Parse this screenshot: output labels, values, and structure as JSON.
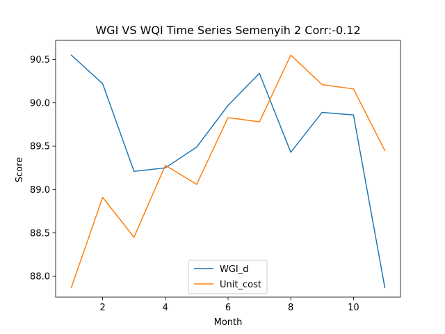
{
  "chart_data": {
    "type": "line",
    "title": "WGI VS WQI Time Series Semenyih 2 Corr:-0.12",
    "xlabel": "Month",
    "ylabel": "Score",
    "x": [
      1,
      2,
      3,
      4,
      5,
      6,
      7,
      8,
      9,
      10,
      11
    ],
    "xlim": [
      0.5,
      11.5
    ],
    "ylim": [
      87.76,
      90.72
    ],
    "xticks": [
      2,
      4,
      6,
      8,
      10
    ],
    "yticks": [
      88.0,
      88.5,
      89.0,
      89.5,
      90.0,
      90.5
    ],
    "xtick_labels": [
      "2",
      "4",
      "6",
      "8",
      "10"
    ],
    "ytick_labels": [
      "88.0",
      "88.5",
      "89.0",
      "89.5",
      "90.0",
      "90.5"
    ],
    "grid": false,
    "legend_position": "bottom-center",
    "series": [
      {
        "name": "WGI_d",
        "color": "#1f77b4",
        "values": [
          90.55,
          90.22,
          89.21,
          89.25,
          89.49,
          89.97,
          90.34,
          89.43,
          89.89,
          89.86,
          87.87
        ]
      },
      {
        "name": "Unit_cost",
        "color": "#ff7f0e",
        "values": [
          87.87,
          88.91,
          88.45,
          89.28,
          89.06,
          89.83,
          89.78,
          90.55,
          90.21,
          90.16,
          89.45
        ]
      }
    ]
  }
}
